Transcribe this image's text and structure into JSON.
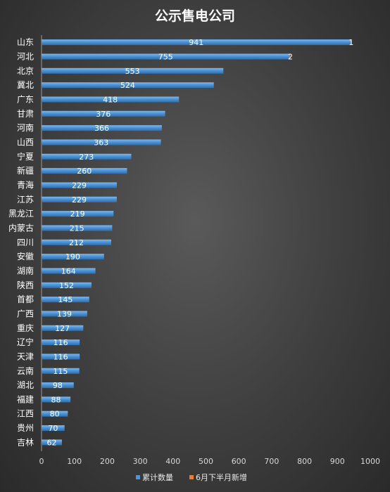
{
  "chart_data": {
    "type": "bar",
    "orientation": "horizontal",
    "title": "公示售电公司",
    "categories": [
      "山东",
      "河北",
      "北京",
      "冀北",
      "广东",
      "甘肃",
      "河南",
      "山西",
      "宁夏",
      "新疆",
      "青海",
      "江苏",
      "黑龙江",
      "内蒙古",
      "四川",
      "安徽",
      "湖南",
      "陕西",
      "首都",
      "广西",
      "重庆",
      "辽宁",
      "天津",
      "云南",
      "湖北",
      "福建",
      "江西",
      "贵州",
      "吉林"
    ],
    "series": [
      {
        "name": "累计数量",
        "color": "#4f94d6",
        "values": [
          941,
          755,
          553,
          524,
          418,
          376,
          366,
          363,
          273,
          260,
          229,
          229,
          219,
          215,
          212,
          190,
          164,
          152,
          145,
          139,
          127,
          116,
          116,
          115,
          98,
          88,
          80,
          70,
          62
        ]
      },
      {
        "name": "6月下半月新增",
        "color": "#ed7d31",
        "values": [
          1,
          2,
          0,
          0,
          0,
          0,
          0,
          0,
          0,
          0,
          0,
          0,
          0,
          0,
          0,
          0,
          0,
          0,
          0,
          0,
          0,
          0,
          0,
          0,
          0,
          0,
          0,
          0,
          0
        ]
      }
    ],
    "xlim": [
      0,
      1000
    ],
    "x_ticks": [
      0,
      100,
      200,
      300,
      400,
      500,
      600,
      700,
      800,
      900,
      1000
    ],
    "grid": false,
    "legend_position": "bottom"
  }
}
